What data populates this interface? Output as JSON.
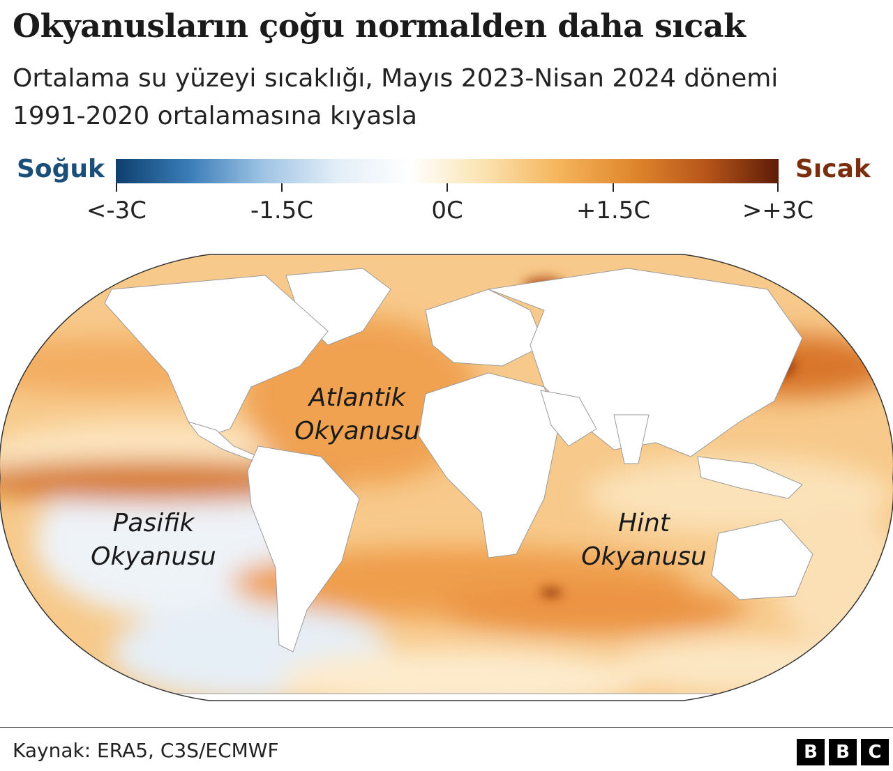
{
  "title": "Okyanusların çoğu normalden daha sıcak",
  "subtitle": "Ortalama su yüzeyi sıcaklığı, Mayıs 2023-Nisan 2024 dönemi 1991-2020 ortalamasına kıyasla",
  "legend": {
    "cold_label": "Soğuk",
    "hot_label": "Sıcak",
    "cold_color": "#1a4f7a",
    "hot_color": "#7a2e0e",
    "ticks": [
      "<-3C",
      "-1.5C",
      "0C",
      "+1.5C",
      ">+3C"
    ],
    "ramp": [
      "#0d3f6e",
      "#3a7db8",
      "#9fc4e4",
      "#e3eef7",
      "#ffffff",
      "#fbe3b0",
      "#f5b55c",
      "#e0882e",
      "#b8561a",
      "#5e1c07"
    ]
  },
  "ocean_labels": {
    "atlantic": [
      "Atlantik",
      "Okyanusu"
    ],
    "pacific": [
      "Pasifik",
      "Okyanusu"
    ],
    "indian": [
      "Hint",
      "Okyanusu"
    ]
  },
  "footer": {
    "source": "Kaynak: ERA5, C3S/ECMWF",
    "logo": [
      "B",
      "B",
      "C"
    ]
  }
}
